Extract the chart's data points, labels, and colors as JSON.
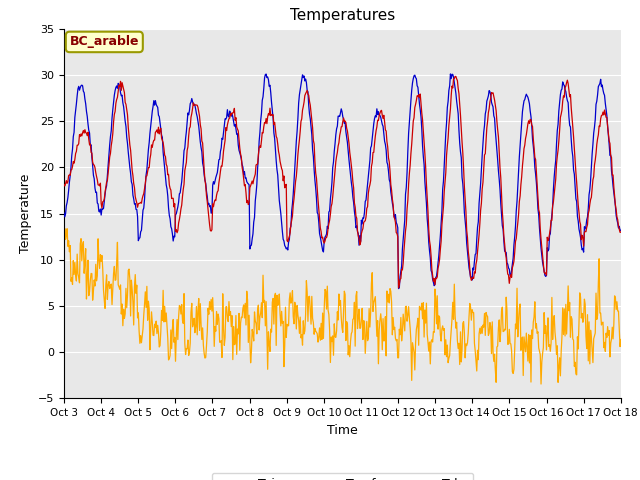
{
  "title": "Temperatures",
  "xlabel": "Time",
  "ylabel": "Temperature",
  "annotation": "BC_arable",
  "ylim": [
    -5,
    35
  ],
  "xlim_days": [
    0,
    15
  ],
  "x_tick_labels": [
    "Oct 3",
    "Oct 4",
    "Oct 5",
    "Oct 6",
    "Oct 7",
    "Oct 8",
    "Oct 9",
    "Oct 10",
    "Oct 11",
    "Oct 12",
    "Oct 13",
    "Oct 14",
    "Oct 15",
    "Oct 16",
    "Oct 17",
    "Oct 18"
  ],
  "colors": {
    "Tair": "#cc0000",
    "Tsurf": "#0000cc",
    "Tsky": "#ffaa00",
    "bg": "#e8e8e8",
    "annotation_bg": "#ffffcc",
    "annotation_border": "#999900",
    "annotation_text": "#880000"
  },
  "n_days": 15,
  "n_per_day": 48
}
